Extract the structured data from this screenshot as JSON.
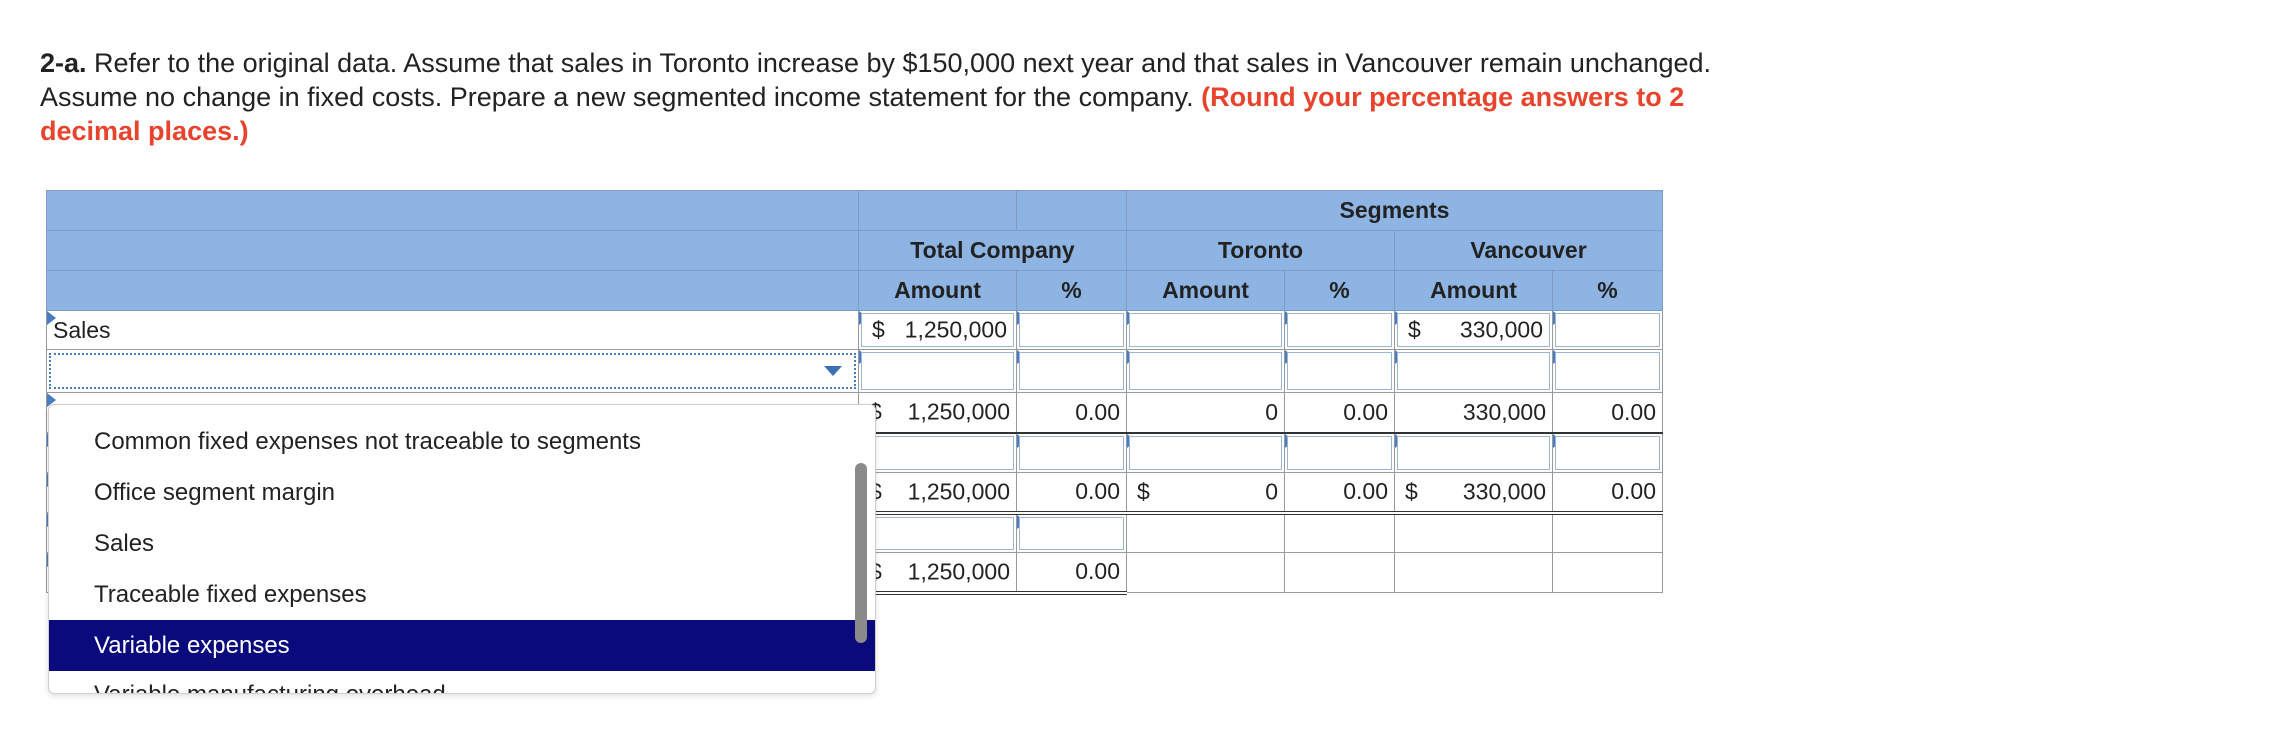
{
  "question": {
    "number": "2-a.",
    "text": " Refer to the original data. Assume that sales in Toronto increase by $150,000 next year and that sales in Vancouver remain unchanged. Assume no change in fixed costs. Prepare a new segmented income statement for the company. ",
    "note": "(Round your percentage answers to 2 decimal places.)"
  },
  "headers": {
    "segments": "Segments",
    "total_company": "Total Company",
    "toronto": "Toronto",
    "vancouver": "Vancouver",
    "amount": "Amount",
    "percent": "%"
  },
  "rows": {
    "sales": {
      "label": "Sales",
      "total_dollar": "$",
      "total_amount": "1,250,000",
      "vancouver_dollar": "$",
      "vancouver_amount": "330,000"
    },
    "selected_row": {
      "value": ""
    },
    "row3": {
      "total_dollar": "$",
      "total_amount": "1,250,000",
      "total_pct": "0.00",
      "toronto_amount": "0",
      "toronto_pct": "0.00",
      "vancouver_amount": "330,000",
      "vancouver_pct": "0.00"
    },
    "row5": {
      "total_dollar": "$",
      "total_amount": "1,250,000",
      "total_pct": "0.00",
      "toronto_dollar": "$",
      "toronto_amount": "0",
      "toronto_pct": "0.00",
      "vancouver_dollar": "$",
      "vancouver_amount": "330,000",
      "vancouver_pct": "0.00"
    },
    "row7": {
      "total_dollar": "$",
      "total_amount": "1,250,000",
      "total_pct": "0.00"
    }
  },
  "dropdown": {
    "options": [
      "Common fixed expenses not traceable to segments",
      "Office segment margin",
      "Sales",
      "Traceable fixed expenses",
      "Variable expenses",
      "Variable manufacturing overhead"
    ],
    "highlighted": "Variable expenses"
  },
  "colors": {
    "header_bg": "#8eb4e3",
    "note": "#e8432d",
    "highlight": "#0a0a7d"
  }
}
